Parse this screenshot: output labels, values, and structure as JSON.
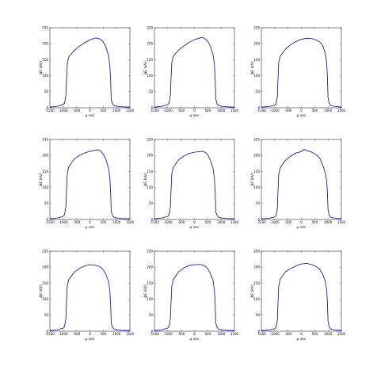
{
  "figure": {
    "background": "#ffffff",
    "line_color": "#0000cc"
  },
  "chart_data": [
    {
      "type": "line",
      "title": "",
      "xlabel": "μ sec",
      "ylabel": "ΔE (kV)",
      "xlim": [
        -1500,
        1500
      ],
      "ylim": [
        0,
        250
      ],
      "xticks": [
        "-1500",
        "-1000",
        "-500",
        "0",
        "500",
        "1000",
        "1500"
      ],
      "yticks": [
        "0",
        "50",
        "100",
        "150",
        "200",
        "250"
      ],
      "series": [
        {
          "x": [
            -1500,
            -1200,
            -1000,
            -950,
            -900,
            -880,
            -850,
            -800,
            -600,
            -400,
            -200,
            0,
            200,
            300,
            400,
            500,
            600,
            700,
            750,
            780,
            800,
            850,
            900,
            1000,
            1200,
            1500
          ],
          "y": [
            2,
            5,
            10,
            15,
            40,
            80,
            135,
            158,
            178,
            192,
            203,
            212,
            218,
            217,
            214,
            206,
            190,
            162,
            130,
            80,
            25,
            12,
            7,
            5,
            3,
            2
          ]
        }
      ]
    },
    {
      "type": "line",
      "title": "",
      "xlabel": "μ sec",
      "ylabel": "ΔE (kV)",
      "xlim": [
        -1500,
        1500
      ],
      "ylim": [
        0,
        250
      ],
      "xticks": [
        "-1500",
        "-1000",
        "-500",
        "0",
        "500",
        "1000",
        "1500"
      ],
      "yticks": [
        "0",
        "50",
        "100",
        "150",
        "200",
        "250"
      ],
      "series": [
        {
          "x": [
            -1500,
            -1200,
            -1000,
            -950,
            -900,
            -880,
            -850,
            -800,
            -600,
            -400,
            -200,
            0,
            200,
            300,
            400,
            500,
            600,
            700,
            750,
            780,
            800,
            850,
            900,
            1000,
            1200,
            1500
          ],
          "y": [
            2,
            5,
            10,
            15,
            40,
            85,
            140,
            160,
            180,
            193,
            204,
            213,
            218,
            219,
            216,
            208,
            192,
            165,
            135,
            85,
            28,
            12,
            7,
            5,
            3,
            2
          ]
        }
      ]
    },
    {
      "type": "line",
      "title": "",
      "xlabel": "μ sec",
      "ylabel": "ΔE (kV)",
      "xlim": [
        -1500,
        1500
      ],
      "ylim": [
        0,
        250
      ],
      "xticks": [
        "-1500",
        "-1000",
        "-500",
        "0",
        "500",
        "1000",
        "1500"
      ],
      "yticks": [
        "0",
        "50",
        "100",
        "150",
        "200",
        "250"
      ],
      "series": [
        {
          "x": [
            -1500,
            -1200,
            -1000,
            -950,
            -900,
            -880,
            -850,
            -800,
            -600,
            -400,
            -200,
            0,
            200,
            400,
            600,
            700,
            800,
            900,
            950,
            980,
            1000,
            1050,
            1100,
            1200,
            1500
          ],
          "y": [
            2,
            4,
            8,
            12,
            35,
            80,
            140,
            160,
            183,
            197,
            207,
            214,
            217,
            216,
            210,
            205,
            195,
            170,
            140,
            90,
            30,
            12,
            7,
            5,
            2
          ]
        }
      ]
    },
    {
      "type": "line",
      "title": "",
      "xlabel": "μ sec",
      "ylabel": "ΔE (kV)",
      "xlim": [
        -1500,
        1500
      ],
      "ylim": [
        0,
        250
      ],
      "xticks": [
        "-1500",
        "-1000",
        "-500",
        "0",
        "500",
        "1000",
        "1500"
      ],
      "yticks": [
        "0",
        "50",
        "100",
        "150",
        "200",
        "250"
      ],
      "series": [
        {
          "x": [
            -1500,
            -1200,
            -1000,
            -950,
            -900,
            -880,
            -850,
            -800,
            -600,
            -400,
            -200,
            0,
            200,
            300,
            400,
            500,
            600,
            700,
            750,
            780,
            800,
            850,
            900,
            1000,
            1200,
            1500
          ],
          "y": [
            2,
            5,
            10,
            15,
            40,
            85,
            140,
            163,
            188,
            200,
            208,
            213,
            216,
            218,
            214,
            205,
            188,
            160,
            130,
            80,
            25,
            12,
            7,
            5,
            3,
            2
          ]
        }
      ]
    },
    {
      "type": "line",
      "title": "",
      "xlabel": "μ sec",
      "ylabel": "ΔE (kV)",
      "xlim": [
        -1500,
        1500
      ],
      "ylim": [
        0,
        250
      ],
      "xticks": [
        "-1500",
        "-1000",
        "-500",
        "0",
        "500",
        "1000",
        "1500"
      ],
      "yticks": [
        "0",
        "50",
        "100",
        "150",
        "200",
        "250"
      ],
      "series": [
        {
          "x": [
            -1500,
            -1200,
            -1000,
            -950,
            -900,
            -880,
            -850,
            -800,
            -600,
            -400,
            -200,
            0,
            200,
            300,
            400,
            500,
            600,
            700,
            750,
            780,
            800,
            850,
            900,
            1000,
            1200,
            1500
          ],
          "y": [
            2,
            5,
            10,
            15,
            40,
            85,
            140,
            162,
            186,
            198,
            206,
            210,
            212,
            213,
            210,
            202,
            185,
            158,
            128,
            80,
            25,
            12,
            7,
            5,
            3,
            2
          ]
        }
      ]
    },
    {
      "type": "line",
      "title": "",
      "xlabel": "μ sec",
      "ylabel": "ΔE (kV)",
      "xlim": [
        -1500,
        1500
      ],
      "ylim": [
        0,
        250
      ],
      "xticks": [
        "-1500",
        "-1000",
        "-500",
        "0",
        "500",
        "1000",
        "1500"
      ],
      "yticks": [
        "0",
        "50",
        "100",
        "150",
        "200",
        "250"
      ],
      "series": [
        {
          "x": [
            -1500,
            -1200,
            -1000,
            -950,
            -900,
            -880,
            -850,
            -800,
            -600,
            -400,
            -200,
            0,
            100,
            200,
            400,
            600,
            700,
            800,
            900,
            950,
            980,
            1000,
            1050,
            1100,
            1200,
            1500
          ],
          "y": [
            2,
            4,
            8,
            12,
            35,
            80,
            140,
            160,
            185,
            198,
            208,
            212,
            219,
            215,
            210,
            200,
            190,
            170,
            145,
            120,
            80,
            30,
            12,
            7,
            5,
            2
          ]
        }
      ]
    },
    {
      "type": "line",
      "title": "",
      "xlabel": "μ sec",
      "ylabel": "ΔE (kV)",
      "xlim": [
        -1500,
        1500
      ],
      "ylim": [
        0,
        250
      ],
      "xticks": [
        "-1500",
        "-1000",
        "-500",
        "0",
        "500",
        "1000",
        "1500"
      ],
      "yticks": [
        "0",
        "50",
        "100",
        "150",
        "200",
        "250"
      ],
      "series": [
        {
          "x": [
            -1500,
            -1200,
            -1000,
            -950,
            -900,
            -880,
            -850,
            -800,
            -600,
            -400,
            -200,
            0,
            200,
            300,
            400,
            500,
            600,
            700,
            750,
            780,
            800,
            850,
            900,
            1000,
            1200,
            1500
          ],
          "y": [
            2,
            5,
            10,
            15,
            40,
            85,
            140,
            160,
            183,
            196,
            204,
            208,
            206,
            204,
            200,
            192,
            178,
            155,
            125,
            80,
            25,
            12,
            7,
            5,
            3,
            2
          ]
        }
      ]
    },
    {
      "type": "line",
      "title": "",
      "xlabel": "μ sec",
      "ylabel": "ΔE (kV)",
      "xlim": [
        -1500,
        1500
      ],
      "ylim": [
        0,
        250
      ],
      "xticks": [
        "-1500",
        "-1000",
        "-500",
        "0",
        "500",
        "1000",
        "1500"
      ],
      "yticks": [
        "0",
        "50",
        "100",
        "150",
        "200",
        "250"
      ],
      "series": [
        {
          "x": [
            -1500,
            -1200,
            -1000,
            -950,
            -900,
            -880,
            -850,
            -800,
            -600,
            -400,
            -200,
            0,
            200,
            300,
            400,
            500,
            600,
            700,
            750,
            780,
            800,
            850,
            900,
            1000,
            1200,
            1500
          ],
          "y": [
            2,
            5,
            10,
            15,
            40,
            85,
            140,
            160,
            185,
            198,
            205,
            208,
            208,
            207,
            203,
            195,
            180,
            158,
            128,
            80,
            25,
            12,
            7,
            5,
            3,
            2
          ]
        }
      ]
    },
    {
      "type": "line",
      "title": "",
      "xlabel": "μ sec",
      "ylabel": "ΔE (kV)",
      "xlim": [
        -1500,
        1500
      ],
      "ylim": [
        0,
        250
      ],
      "xticks": [
        "-1500",
        "-1000",
        "-500",
        "0",
        "500",
        "1000",
        "1500"
      ],
      "yticks": [
        "0",
        "50",
        "100",
        "150",
        "200",
        "250"
      ],
      "series": [
        {
          "x": [
            -1500,
            -1200,
            -1000,
            -950,
            -900,
            -880,
            -850,
            -800,
            -600,
            -400,
            -200,
            0,
            200,
            400,
            600,
            700,
            800,
            900,
            950,
            980,
            1000,
            1050,
            1100,
            1200,
            1500
          ],
          "y": [
            2,
            4,
            8,
            12,
            35,
            80,
            140,
            162,
            185,
            196,
            204,
            210,
            212,
            208,
            200,
            192,
            178,
            155,
            130,
            85,
            30,
            12,
            7,
            5,
            2
          ]
        }
      ]
    }
  ]
}
